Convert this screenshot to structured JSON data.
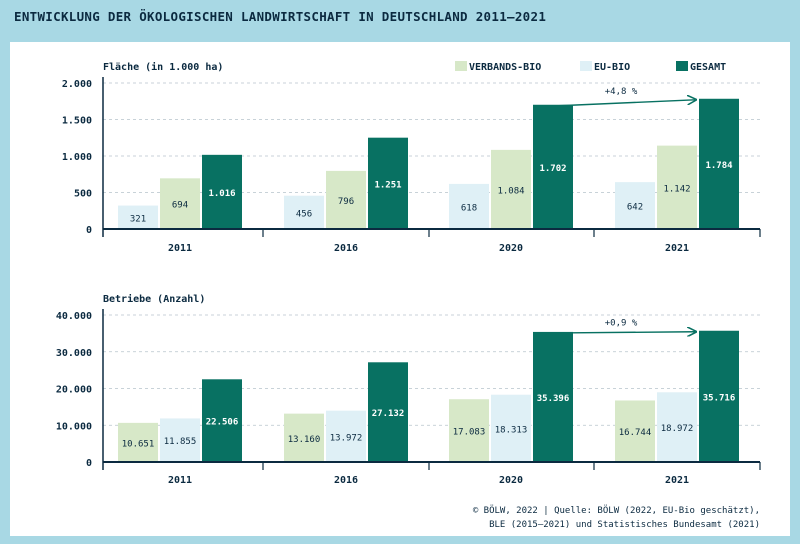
{
  "title": "ENTWICKLUNG DER ÖKOLOGISCHEN LANDWIRTSCHAFT IN DEUTSCHLAND 2011–2021",
  "source": {
    "line1": "© BÖLW, 2022 | Quelle: BÖLW (2022, EU-Bio geschätzt),",
    "line2": "BLE (2015–2021) und Statistisches Bundesamt (2021)"
  },
  "colors": {
    "eu_bio": "#dff0f6",
    "verbands_bio": "#d7e8c8",
    "gesamt": "#087162",
    "axis": "#0b2a40",
    "grid": "#b7c4cc",
    "background": "#a8d8e4"
  },
  "legend": [
    {
      "name": "VERBANDS-BIO",
      "color": "#d7e8c8"
    },
    {
      "name": "EU-BIO",
      "color": "#dff0f6"
    },
    {
      "name": "GESAMT",
      "color": "#087162"
    }
  ],
  "chart_data": [
    {
      "type": "bar",
      "ylabel": "Fläche (in 1.000 ha)",
      "categories": [
        "2011",
        "2016",
        "2020",
        "2021"
      ],
      "ylim": [
        0,
        2000
      ],
      "yticks": [
        0,
        500,
        1000,
        1500,
        2000
      ],
      "ytick_labels": [
        "0",
        "500",
        "1.000",
        "1.500",
        "2.000"
      ],
      "grid": true,
      "legend_position": "top-right",
      "series": [
        {
          "name": "EU-BIO",
          "values": [
            321,
            456,
            618,
            642
          ],
          "labels": [
            "321",
            "456",
            "618",
            "642"
          ]
        },
        {
          "name": "VERBANDS-BIO",
          "values": [
            694,
            796,
            1084,
            1142
          ],
          "labels": [
            "694",
            "796",
            "1.084",
            "1.142"
          ]
        },
        {
          "name": "GESAMT",
          "values": [
            1016,
            1251,
            1702,
            1784
          ],
          "labels": [
            "1.016",
            "1.251",
            "1.702",
            "1.784"
          ]
        }
      ],
      "annotation": "+4,8 %"
    },
    {
      "type": "bar",
      "ylabel": "Betriebe (Anzahl)",
      "categories": [
        "2011",
        "2016",
        "2020",
        "2021"
      ],
      "ylim": [
        0,
        40000
      ],
      "yticks": [
        0,
        10000,
        20000,
        30000,
        40000
      ],
      "ytick_labels": [
        "0",
        "10.000",
        "20.000",
        "30.000",
        "40.000"
      ],
      "grid": true,
      "series": [
        {
          "name": "VERBANDS-BIO",
          "values": [
            10651,
            13160,
            17083,
            16744
          ],
          "labels": [
            "10.651",
            "13.160",
            "17.083",
            "16.744"
          ]
        },
        {
          "name": "EU-BIO",
          "values": [
            11855,
            13972,
            18313,
            18972
          ],
          "labels": [
            "11.855",
            "13.972",
            "18.313",
            "18.972"
          ]
        },
        {
          "name": "GESAMT",
          "values": [
            22506,
            27132,
            35396,
            35716
          ],
          "labels": [
            "22.506",
            "27.132",
            "35.396",
            "35.716"
          ]
        }
      ],
      "annotation": "+0,9 %"
    }
  ]
}
